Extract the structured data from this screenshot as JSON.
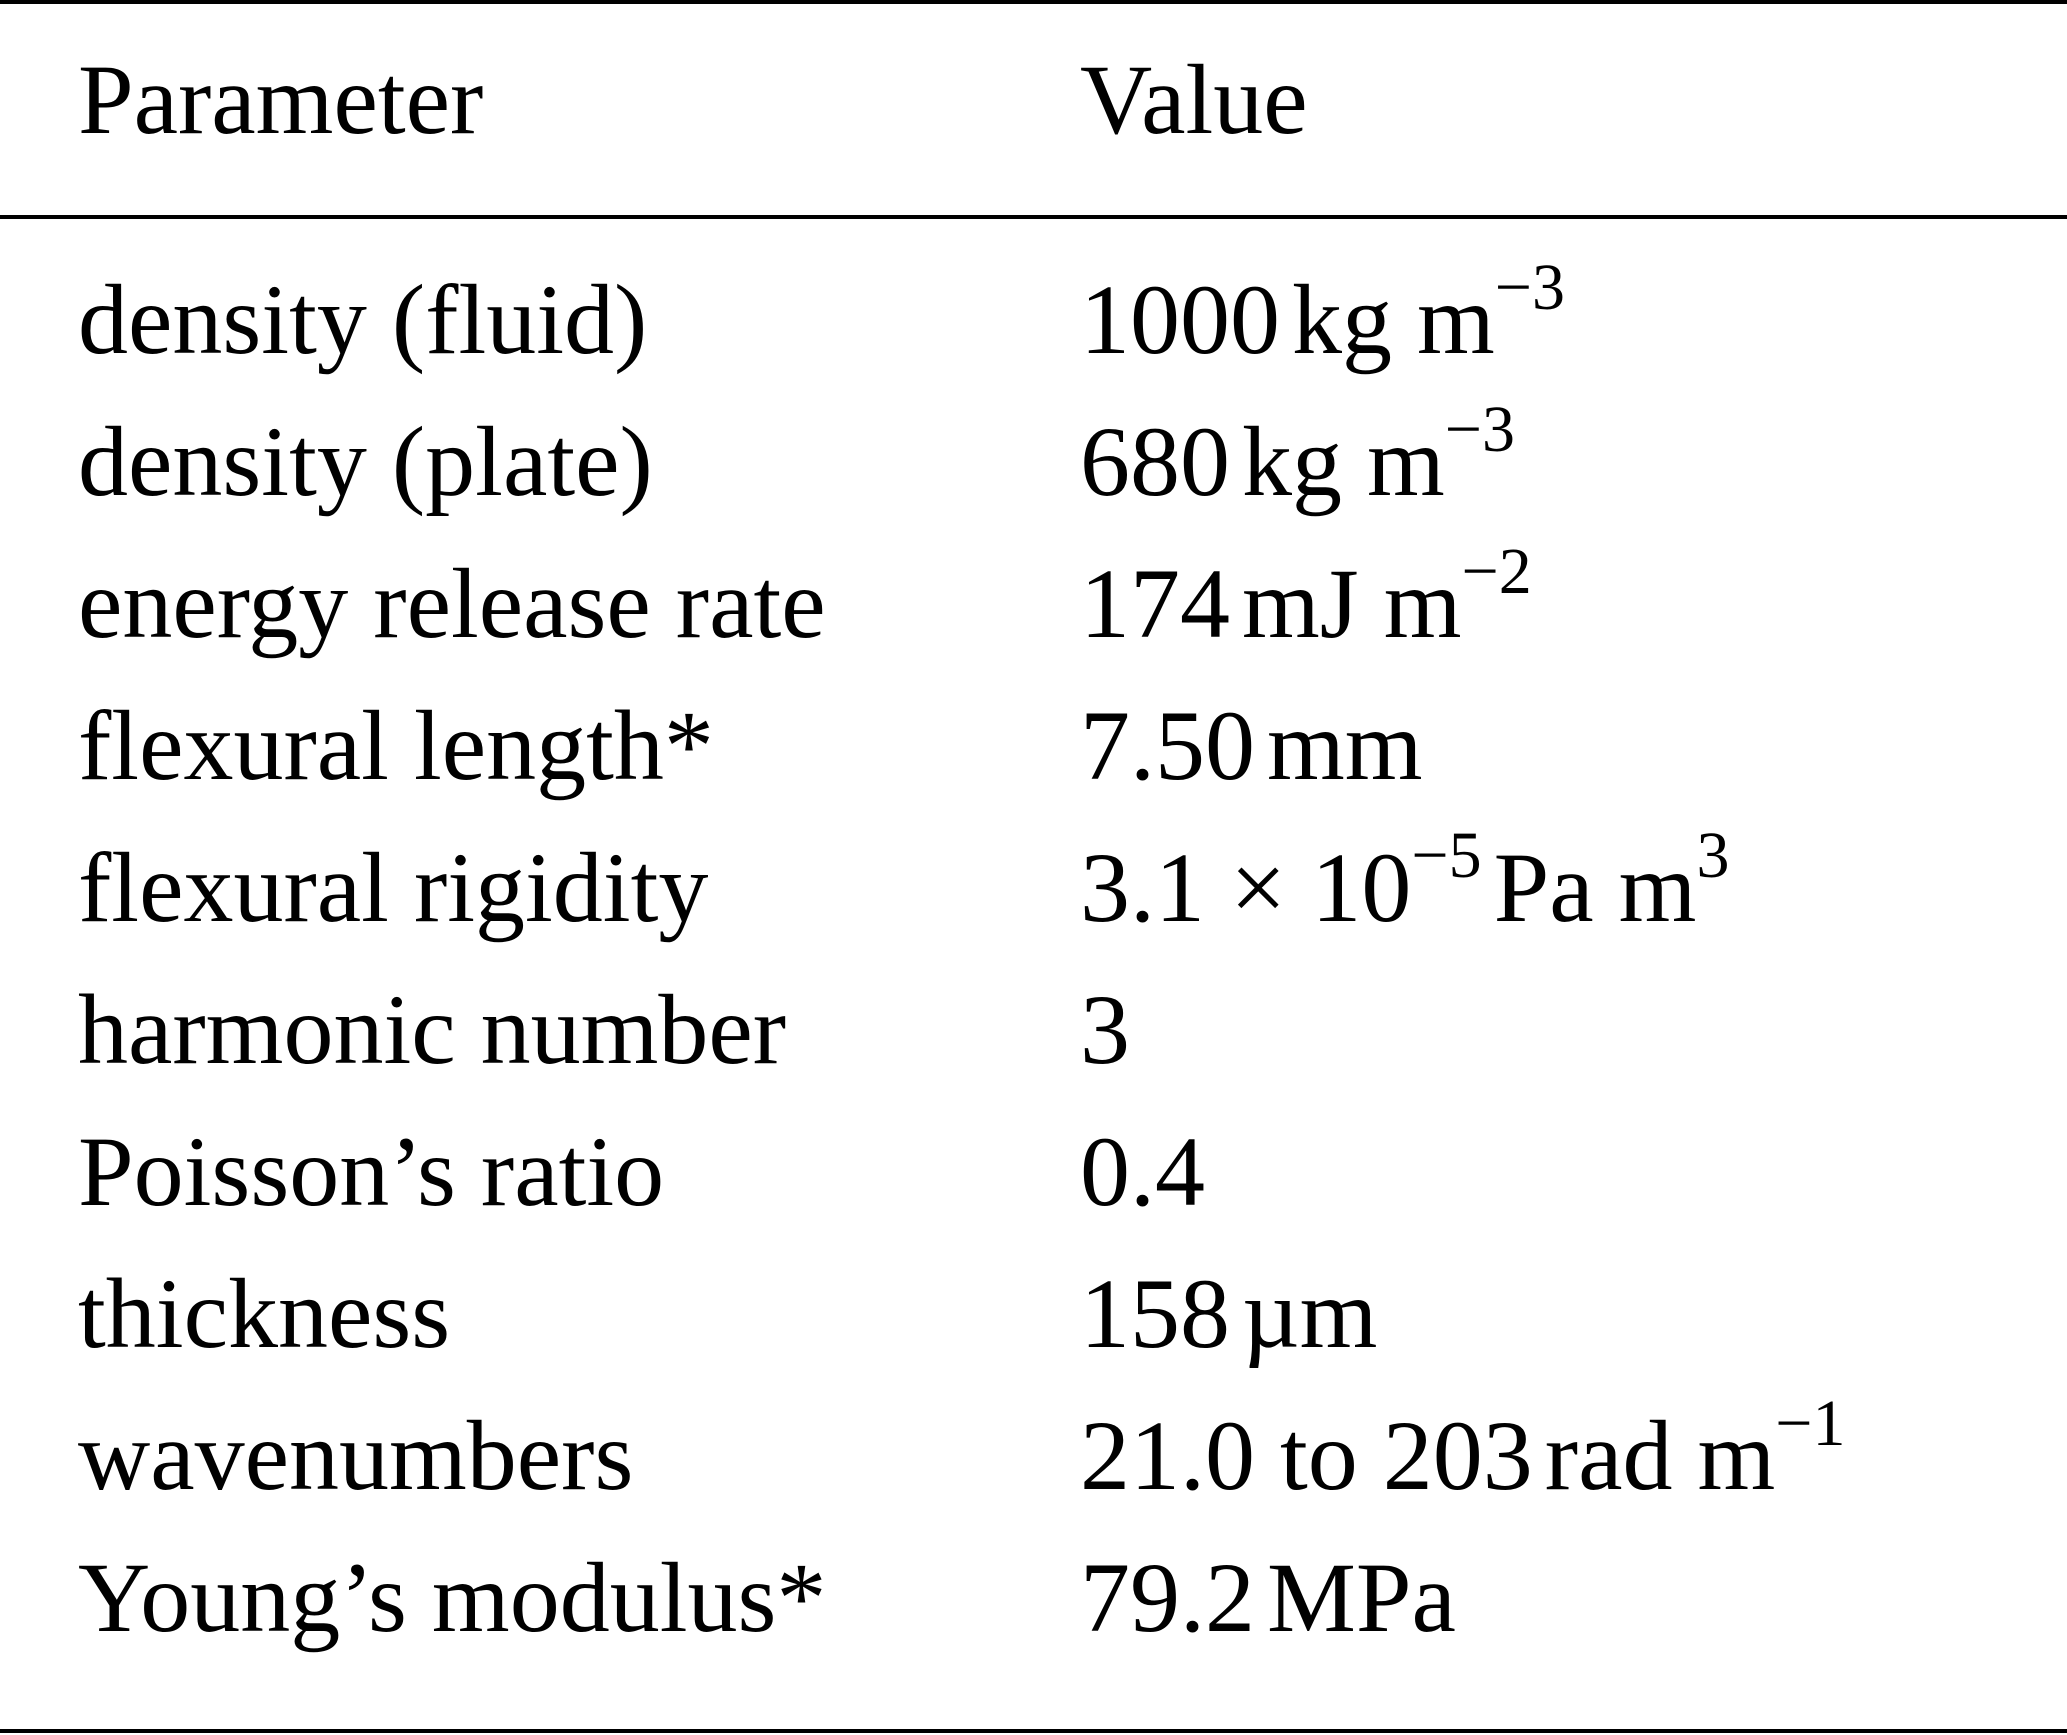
{
  "table": {
    "header": {
      "parameter": "Parameter",
      "value": "Value"
    },
    "rows": [
      {
        "parameter": "density (fluid)",
        "value_main": "1000",
        "unit": "kg m",
        "exp": "−3",
        "unit_tail": ""
      },
      {
        "parameter": "density (plate)",
        "value_main": "680",
        "unit": "kg m",
        "exp": "−3",
        "unit_tail": ""
      },
      {
        "parameter": "energy release rate",
        "value_main": "174",
        "unit": "mJ m",
        "exp": "−2",
        "unit_tail": ""
      },
      {
        "parameter": "flexural length*",
        "value_main": "7.50",
        "unit": "mm",
        "exp": "",
        "unit_tail": ""
      },
      {
        "parameter": "flexural rigidity",
        "value_main": "3.1 × 10",
        "unit": "",
        "exp": "−5",
        "unit_tail": "Pa m",
        "exp2": "3"
      },
      {
        "parameter": "harmonic number",
        "value_main": "3",
        "unit": "",
        "exp": "",
        "unit_tail": ""
      },
      {
        "parameter": "Poisson’s ratio",
        "value_main": "0.4",
        "unit": "",
        "exp": "",
        "unit_tail": ""
      },
      {
        "parameter": "thickness",
        "value_main": "158",
        "unit": "µm",
        "exp": "",
        "unit_tail": ""
      },
      {
        "parameter": "wavenumbers",
        "value_main": "21.0 to 203",
        "unit": "rad m",
        "exp": "−1",
        "unit_tail": ""
      },
      {
        "parameter": "Young’s modulus*",
        "value_main": "79.2",
        "unit": "MPa",
        "exp": "",
        "unit_tail": ""
      }
    ]
  }
}
